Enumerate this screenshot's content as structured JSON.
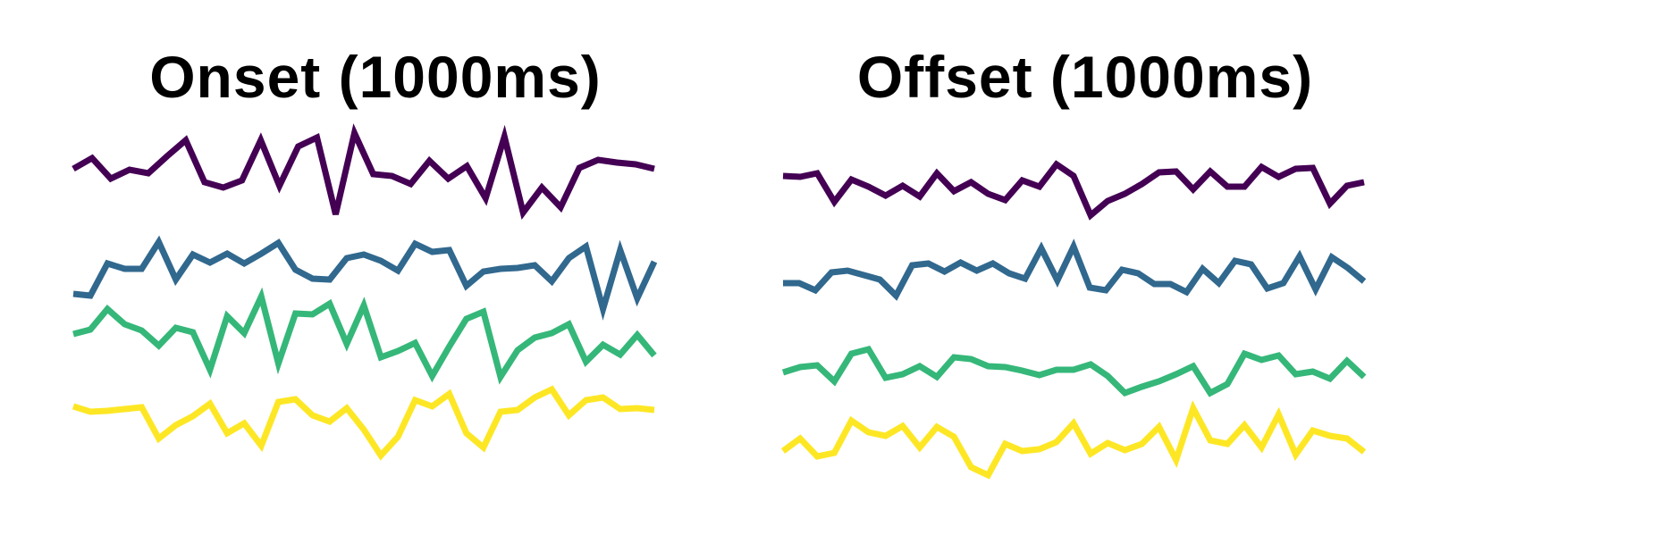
{
  "colors": [
    "#440154",
    "#31688e",
    "#35b779",
    "#fde725"
  ],
  "chart_data": [
    {
      "type": "line",
      "title": "Onset (1000ms)",
      "grid": false,
      "axes_visible": false,
      "ylim": [
        0,
        10
      ],
      "series": [
        {
          "color": "#440154",
          "points": [
            [
              0,
              2.9
            ],
            [
              1,
              4.1
            ],
            [
              2,
              1.8
            ],
            [
              3,
              2.8
            ],
            [
              4,
              2.4
            ],
            [
              5,
              4.3
            ],
            [
              6,
              6.1
            ],
            [
              7,
              1.4
            ],
            [
              8,
              0.8
            ],
            [
              9,
              1.6
            ],
            [
              10,
              6.1
            ],
            [
              11,
              1.0
            ],
            [
              12,
              5.4
            ],
            [
              13,
              6.4
            ],
            [
              14,
              -2.2
            ],
            [
              15,
              6.9
            ],
            [
              16,
              2.3
            ],
            [
              17,
              2.1
            ],
            [
              18,
              1.2
            ],
            [
              19,
              3.8
            ],
            [
              20,
              1.8
            ],
            [
              21,
              3.2
            ],
            [
              22,
              -0.4
            ],
            [
              23,
              6.5
            ],
            [
              24,
              -2.0
            ],
            [
              25,
              0.8
            ],
            [
              26,
              -1.4
            ],
            [
              27,
              3.0
            ],
            [
              28,
              3.9
            ],
            [
              29,
              3.6
            ],
            [
              30,
              3.4
            ],
            [
              31,
              2.9
            ]
          ]
        },
        {
          "color": "#31688e",
          "points": [
            [
              0,
              -0.4
            ],
            [
              1,
              -0.6
            ],
            [
              2,
              3.0
            ],
            [
              3,
              2.4
            ],
            [
              4,
              2.4
            ],
            [
              5,
              5.4
            ],
            [
              6,
              1.2
            ],
            [
              7,
              4.0
            ],
            [
              8,
              3.1
            ],
            [
              9,
              4.1
            ],
            [
              10,
              3.0
            ],
            [
              11,
              4.1
            ],
            [
              12,
              5.3
            ],
            [
              13,
              2.3
            ],
            [
              14,
              1.3
            ],
            [
              15,
              1.2
            ],
            [
              16,
              3.6
            ],
            [
              17,
              4.0
            ],
            [
              18,
              3.3
            ],
            [
              19,
              2.2
            ],
            [
              20,
              5.2
            ],
            [
              21,
              4.3
            ],
            [
              22,
              4.5
            ],
            [
              23,
              0.5
            ],
            [
              24,
              2.1
            ],
            [
              25,
              2.4
            ],
            [
              26,
              2.5
            ],
            [
              27,
              2.8
            ],
            [
              28,
              1.0
            ],
            [
              29,
              3.6
            ],
            [
              30,
              4.9
            ],
            [
              31,
              -2.1
            ],
            [
              32,
              4.5
            ],
            [
              33,
              -0.9
            ],
            [
              34,
              3.2
            ]
          ]
        },
        {
          "color": "#35b779",
          "points": [
            [
              0,
              2.4
            ],
            [
              1,
              2.9
            ],
            [
              2,
              5.2
            ],
            [
              3,
              3.5
            ],
            [
              4,
              2.8
            ],
            [
              5,
              1.1
            ],
            [
              6,
              3.1
            ],
            [
              7,
              2.6
            ],
            [
              8,
              -1.6
            ],
            [
              9,
              4.4
            ],
            [
              10,
              2.5
            ],
            [
              11,
              6.6
            ],
            [
              12,
              -0.9
            ],
            [
              13,
              4.7
            ],
            [
              14,
              4.6
            ],
            [
              15,
              5.8
            ],
            [
              16,
              1.3
            ],
            [
              17,
              5.6
            ],
            [
              18,
              -0.2
            ],
            [
              19,
              0.5
            ],
            [
              20,
              1.4
            ],
            [
              21,
              -2.3
            ],
            [
              22,
              1.0
            ],
            [
              23,
              4.1
            ],
            [
              24,
              4.9
            ],
            [
              25,
              -2.4
            ],
            [
              26,
              0.6
            ],
            [
              27,
              2.0
            ],
            [
              28,
              2.5
            ],
            [
              29,
              3.5
            ],
            [
              30,
              -0.7
            ],
            [
              31,
              1.2
            ],
            [
              32,
              0.1
            ],
            [
              33,
              2.3
            ],
            [
              34,
              0.0
            ]
          ]
        },
        {
          "color": "#fde725",
          "points": [
            [
              0,
              4.0
            ],
            [
              1,
              3.4
            ],
            [
              2,
              3.5
            ],
            [
              3,
              3.7
            ],
            [
              4,
              3.9
            ],
            [
              5,
              0.4
            ],
            [
              6,
              1.9
            ],
            [
              7,
              2.9
            ],
            [
              8,
              4.3
            ],
            [
              9,
              1.0
            ],
            [
              10,
              2.1
            ],
            [
              11,
              -0.4
            ],
            [
              12,
              4.5
            ],
            [
              13,
              4.8
            ],
            [
              14,
              3.0
            ],
            [
              15,
              2.3
            ],
            [
              16,
              3.8
            ],
            [
              17,
              1.4
            ],
            [
              18,
              -1.5
            ],
            [
              19,
              0.6
            ],
            [
              20,
              4.7
            ],
            [
              21,
              4.0
            ],
            [
              22,
              5.4
            ],
            [
              23,
              1.0
            ],
            [
              24,
              -0.6
            ],
            [
              25,
              3.4
            ],
            [
              26,
              3.6
            ],
            [
              27,
              5.0
            ],
            [
              28,
              5.9
            ],
            [
              29,
              3.0
            ],
            [
              30,
              4.7
            ],
            [
              31,
              5.0
            ],
            [
              32,
              3.7
            ],
            [
              33,
              3.8
            ],
            [
              34,
              3.6
            ]
          ]
        }
      ]
    },
    {
      "type": "line",
      "title": "Offset (1000ms)",
      "grid": false,
      "axes_visible": false,
      "ylim": [
        0,
        10
      ],
      "series": [
        {
          "color": "#440154",
          "points": [
            [
              0,
              4.3
            ],
            [
              1,
              4.2
            ],
            [
              2,
              4.6
            ],
            [
              3,
              1.4
            ],
            [
              4,
              3.9
            ],
            [
              5,
              3.1
            ],
            [
              6,
              2.1
            ],
            [
              7,
              3.2
            ],
            [
              8,
              2.0
            ],
            [
              9,
              4.6
            ],
            [
              10,
              2.6
            ],
            [
              11,
              3.6
            ],
            [
              12,
              2.3
            ],
            [
              13,
              1.6
            ],
            [
              14,
              3.8
            ],
            [
              15,
              3.1
            ],
            [
              16,
              5.6
            ],
            [
              17,
              4.3
            ],
            [
              18,
              -0.1
            ],
            [
              19,
              1.5
            ],
            [
              20,
              2.3
            ],
            [
              21,
              3.4
            ],
            [
              22,
              4.7
            ],
            [
              23,
              4.8
            ],
            [
              24,
              2.8
            ],
            [
              25,
              4.8
            ],
            [
              26,
              3.1
            ],
            [
              27,
              3.1
            ],
            [
              28,
              5.3
            ],
            [
              29,
              4.2
            ],
            [
              30,
              5.1
            ],
            [
              31,
              5.2
            ],
            [
              32,
              1.2
            ],
            [
              33,
              3.2
            ],
            [
              34,
              3.6
            ]
          ]
        },
        {
          "color": "#31688e",
          "points": [
            [
              0,
              2.3
            ],
            [
              1,
              2.3
            ],
            [
              2,
              1.5
            ],
            [
              3,
              3.5
            ],
            [
              4,
              3.7
            ],
            [
              5,
              3.2
            ],
            [
              6,
              2.7
            ],
            [
              7,
              0.9
            ],
            [
              8,
              4.3
            ],
            [
              9,
              4.5
            ],
            [
              10,
              3.6
            ],
            [
              11,
              4.6
            ],
            [
              12,
              3.7
            ],
            [
              13,
              4.5
            ],
            [
              14,
              3.4
            ],
            [
              15,
              2.8
            ],
            [
              16,
              6.2
            ],
            [
              17,
              2.6
            ],
            [
              18,
              6.4
            ],
            [
              19,
              1.8
            ],
            [
              20,
              1.5
            ],
            [
              21,
              3.8
            ],
            [
              22,
              3.4
            ],
            [
              23,
              2.2
            ],
            [
              24,
              2.2
            ],
            [
              25,
              1.3
            ],
            [
              26,
              3.9
            ],
            [
              27,
              2.3
            ],
            [
              28,
              4.8
            ],
            [
              29,
              4.4
            ],
            [
              30,
              1.7
            ],
            [
              31,
              2.3
            ],
            [
              32,
              5.3
            ],
            [
              33,
              1.6
            ],
            [
              34,
              5.2
            ],
            [
              35,
              4.0
            ],
            [
              36,
              2.5
            ]
          ]
        },
        {
          "color": "#35b779",
          "points": [
            [
              0,
              2.8
            ],
            [
              1,
              3.4
            ],
            [
              2,
              3.6
            ],
            [
              3,
              1.8
            ],
            [
              4,
              4.9
            ],
            [
              5,
              5.4
            ],
            [
              6,
              2.2
            ],
            [
              7,
              2.6
            ],
            [
              8,
              3.5
            ],
            [
              9,
              2.3
            ],
            [
              10,
              4.5
            ],
            [
              11,
              4.3
            ],
            [
              12,
              3.5
            ],
            [
              13,
              3.4
            ],
            [
              14,
              3.0
            ],
            [
              15,
              2.5
            ],
            [
              16,
              3.1
            ],
            [
              17,
              3.1
            ],
            [
              18,
              3.7
            ],
            [
              19,
              2.4
            ],
            [
              20,
              0.5
            ],
            [
              21,
              1.2
            ],
            [
              22,
              1.8
            ],
            [
              23,
              2.6
            ],
            [
              24,
              3.5
            ],
            [
              25,
              0.5
            ],
            [
              26,
              1.5
            ],
            [
              27,
              4.9
            ],
            [
              28,
              4.2
            ],
            [
              29,
              4.7
            ],
            [
              30,
              2.6
            ],
            [
              31,
              2.9
            ],
            [
              32,
              2.1
            ],
            [
              33,
              4.1
            ],
            [
              34,
              2.3
            ]
          ]
        },
        {
          "color": "#fde725",
          "points": [
            [
              0,
              1.0
            ],
            [
              1,
              2.4
            ],
            [
              2,
              0.4
            ],
            [
              3,
              0.8
            ],
            [
              4,
              4.4
            ],
            [
              5,
              3.1
            ],
            [
              6,
              2.7
            ],
            [
              7,
              3.8
            ],
            [
              8,
              1.4
            ],
            [
              9,
              3.7
            ],
            [
              10,
              2.6
            ],
            [
              11,
              -0.8
            ],
            [
              12,
              -1.7
            ],
            [
              13,
              1.8
            ],
            [
              14,
              1.0
            ],
            [
              15,
              1.2
            ],
            [
              16,
              2.0
            ],
            [
              17,
              4.1
            ],
            [
              18,
              0.7
            ],
            [
              19,
              1.9
            ],
            [
              20,
              1.1
            ],
            [
              21,
              1.8
            ],
            [
              22,
              3.7
            ],
            [
              23,
              0.0
            ],
            [
              24,
              5.8
            ],
            [
              25,
              2.2
            ],
            [
              26,
              1.8
            ],
            [
              27,
              3.9
            ],
            [
              28,
              1.4
            ],
            [
              29,
              5.1
            ],
            [
              30,
              0.6
            ],
            [
              31,
              3.3
            ],
            [
              32,
              2.7
            ],
            [
              33,
              2.4
            ],
            [
              34,
              0.9
            ]
          ]
        }
      ]
    }
  ]
}
